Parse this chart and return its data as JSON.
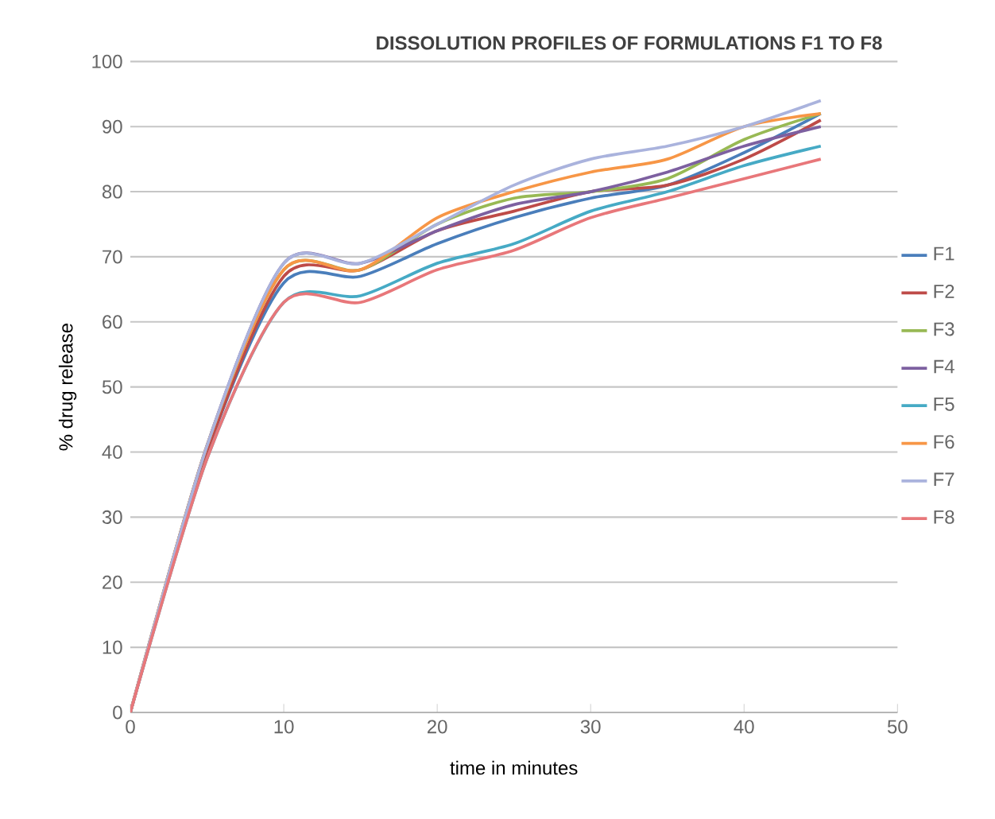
{
  "chart_data": {
    "type": "line",
    "title": "DISSOLUTION PROFILES OF FORMULATIONS F1 TO F8",
    "xlabel": "time in minutes",
    "ylabel": "% drug release",
    "x": [
      0,
      5,
      10,
      15,
      20,
      25,
      30,
      35,
      40,
      45
    ],
    "xlim": [
      0,
      50
    ],
    "xticks": [
      0,
      10,
      20,
      30,
      40,
      50
    ],
    "ylim": [
      0,
      100
    ],
    "yticks": [
      0,
      10,
      20,
      30,
      40,
      50,
      60,
      70,
      80,
      90,
      100
    ],
    "grid": "y",
    "legend": "right",
    "marker": "none",
    "line_style": "solid",
    "series": [
      {
        "name": "F1",
        "color": "#4a7ebb",
        "values": [
          0,
          40,
          66,
          67,
          72,
          76,
          79,
          81,
          86,
          92
        ]
      },
      {
        "name": "F2",
        "color": "#be4b48",
        "values": [
          0,
          40,
          67,
          68,
          74,
          77,
          80,
          81,
          85,
          91
        ]
      },
      {
        "name": "F3",
        "color": "#98b954",
        "values": [
          0,
          41,
          68,
          68,
          75,
          79,
          80,
          82,
          88,
          92
        ]
      },
      {
        "name": "F4",
        "color": "#7d60a0",
        "values": [
          0,
          41,
          69,
          69,
          74,
          78,
          80,
          83,
          87,
          90
        ]
      },
      {
        "name": "F5",
        "color": "#46aac5",
        "values": [
          0,
          39,
          63,
          64,
          69,
          72,
          77,
          80,
          84,
          87
        ]
      },
      {
        "name": "F6",
        "color": "#f79646",
        "values": [
          0,
          41,
          68,
          68,
          76,
          80,
          83,
          85,
          90,
          92
        ]
      },
      {
        "name": "F7",
        "color": "#aab3dd",
        "values": [
          0,
          41,
          69,
          69,
          75,
          81,
          85,
          87,
          90,
          94
        ]
      },
      {
        "name": "F8",
        "color": "#e8777a",
        "values": [
          0,
          39,
          63,
          63,
          68,
          71,
          76,
          79,
          82,
          85
        ]
      }
    ]
  }
}
